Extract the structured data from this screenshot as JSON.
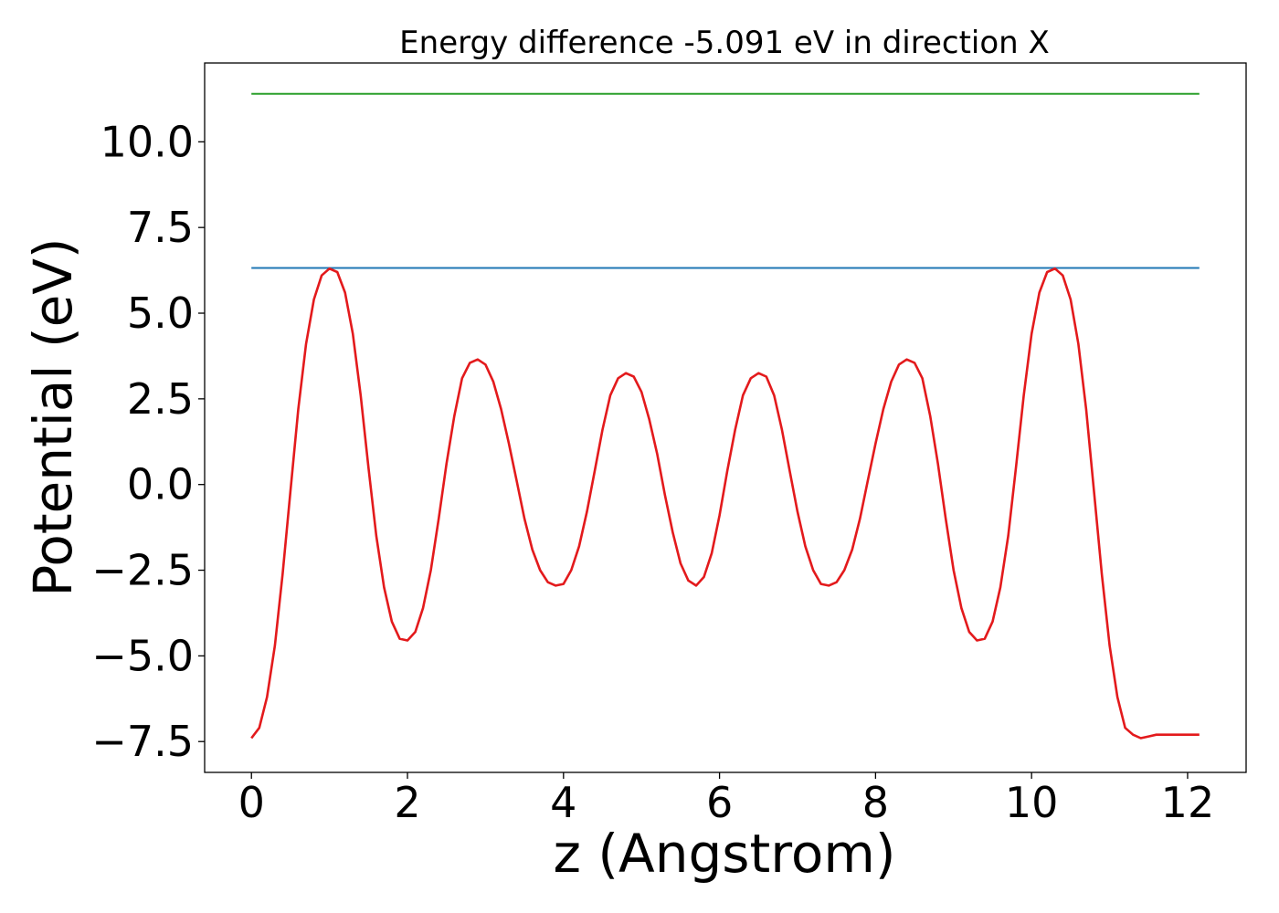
{
  "chart_data": {
    "type": "line",
    "title": "Energy difference -5.091 eV in direction X",
    "xlabel": "z (Angstrom)",
    "ylabel": "Potential (eV)",
    "xlim": [
      -0.6,
      12.75
    ],
    "ylim": [
      -8.4,
      12.3
    ],
    "xticks": [
      0,
      2,
      4,
      6,
      8,
      10,
      12
    ],
    "xtick_labels": [
      "0",
      "2",
      "4",
      "6",
      "8",
      "10",
      "12"
    ],
    "yticks": [
      -7.5,
      -5.0,
      -2.5,
      0.0,
      2.5,
      5.0,
      7.5,
      10.0
    ],
    "ytick_labels": [
      "−7.5",
      "−5.0",
      "−2.5",
      "0.0",
      "2.5",
      "5.0",
      "7.5",
      "10.0"
    ],
    "grid": false,
    "legend": "none",
    "series": [
      {
        "color": "#2ca02c",
        "x": [
          0,
          12.15
        ],
        "y": [
          11.4,
          11.4
        ]
      },
      {
        "color": "#1f77b4",
        "x": [
          0,
          12.15
        ],
        "y": [
          6.32,
          6.32
        ]
      },
      {
        "color": "#e31a1c",
        "x": [
          0,
          0.1,
          0.2,
          0.3,
          0.4,
          0.5,
          0.6,
          0.7,
          0.8,
          0.9,
          1.0,
          1.1,
          1.2,
          1.3,
          1.4,
          1.5,
          1.6,
          1.7,
          1.8,
          1.9,
          2.0,
          2.1,
          2.2,
          2.3,
          2.4,
          2.5,
          2.6,
          2.7,
          2.8,
          2.9,
          3.0,
          3.1,
          3.2,
          3.3,
          3.4,
          3.5,
          3.6,
          3.7,
          3.8,
          3.9,
          4.0,
          4.1,
          4.2,
          4.3,
          4.4,
          4.5,
          4.6,
          4.7,
          4.8,
          4.9,
          5.0,
          5.1,
          5.2,
          5.3,
          5.4,
          5.5,
          5.6,
          5.7,
          5.8,
          5.9,
          6.0,
          6.1,
          6.2,
          6.3,
          6.4,
          6.5,
          6.6,
          6.7,
          6.8,
          6.9,
          7.0,
          7.1,
          7.2,
          7.3,
          7.4,
          7.5,
          7.6,
          7.7,
          7.8,
          7.9,
          8.0,
          8.1,
          8.2,
          8.3,
          8.4,
          8.5,
          8.6,
          8.7,
          8.8,
          8.9,
          9.0,
          9.1,
          9.2,
          9.3,
          9.4,
          9.5,
          9.6,
          9.7,
          9.8,
          9.9,
          10.0,
          10.1,
          10.2,
          10.3,
          10.4,
          10.5,
          10.6,
          10.7,
          10.8,
          10.9,
          11.0,
          11.1,
          11.2,
          11.3,
          11.4,
          11.5,
          11.6,
          11.7,
          11.8,
          11.9,
          12.0,
          12.1,
          12.15
        ],
        "y": [
          -7.4,
          -7.1,
          -6.2,
          -4.7,
          -2.6,
          -0.2,
          2.2,
          4.1,
          5.4,
          6.1,
          6.3,
          6.2,
          5.6,
          4.4,
          2.6,
          0.5,
          -1.5,
          -3.0,
          -4.0,
          -4.5,
          -4.55,
          -4.3,
          -3.6,
          -2.5,
          -1.0,
          0.6,
          2.0,
          3.1,
          3.55,
          3.65,
          3.5,
          3.0,
          2.2,
          1.2,
          0.1,
          -1.0,
          -1.9,
          -2.5,
          -2.85,
          -2.95,
          -2.9,
          -2.5,
          -1.8,
          -0.8,
          0.4,
          1.6,
          2.6,
          3.1,
          3.25,
          3.15,
          2.7,
          1.9,
          0.9,
          -0.3,
          -1.4,
          -2.3,
          -2.8,
          -2.95,
          -2.7,
          -2.0,
          -0.9,
          0.4,
          1.6,
          2.6,
          3.1,
          3.25,
          3.15,
          2.6,
          1.6,
          0.4,
          -0.8,
          -1.8,
          -2.5,
          -2.9,
          -2.95,
          -2.85,
          -2.5,
          -1.9,
          -1.0,
          0.1,
          1.2,
          2.2,
          3.0,
          3.5,
          3.65,
          3.55,
          3.1,
          2.0,
          0.6,
          -1.0,
          -2.5,
          -3.6,
          -4.3,
          -4.55,
          -4.5,
          -4.0,
          -3.0,
          -1.5,
          0.5,
          2.6,
          4.4,
          5.6,
          6.2,
          6.3,
          6.1,
          5.4,
          4.1,
          2.2,
          -0.2,
          -2.6,
          -4.7,
          -6.2,
          -7.1,
          -7.3,
          -7.4,
          -7.35,
          -7.3,
          -7.3,
          -7.3,
          -7.3,
          -7.3,
          -7.3,
          -7.3
        ]
      }
    ]
  }
}
